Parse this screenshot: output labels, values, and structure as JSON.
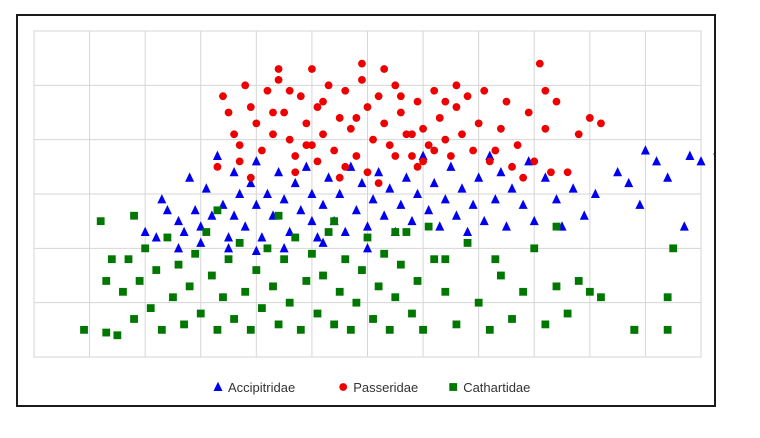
{
  "chart_data": {
    "type": "scatter",
    "title": "",
    "xlabel": "",
    "ylabel": "",
    "xlim": [
      0,
      12
    ],
    "ylim": [
      0,
      6
    ],
    "grid": true,
    "axis_tick_labels": false,
    "legend_position": "bottom",
    "series": [
      {
        "name": "Accipitridae",
        "marker": "triangle",
        "color": "#0000ee",
        "points": [
          [
            2.3,
            2.9
          ],
          [
            2.0,
            2.3
          ],
          [
            2.2,
            2.2
          ],
          [
            2.4,
            2.7
          ],
          [
            2.6,
            2.5
          ],
          [
            2.7,
            2.3
          ],
          [
            2.8,
            3.3
          ],
          [
            2.9,
            2.7
          ],
          [
            3.0,
            2.4
          ],
          [
            3.1,
            3.1
          ],
          [
            3.2,
            2.6
          ],
          [
            3.3,
            3.7
          ],
          [
            3.4,
            2.8
          ],
          [
            3.5,
            2.2
          ],
          [
            3.6,
            3.4
          ],
          [
            3.6,
            2.6
          ],
          [
            3.7,
            3.0
          ],
          [
            3.8,
            2.4
          ],
          [
            3.9,
            3.2
          ],
          [
            4.0,
            2.8
          ],
          [
            4.0,
            3.6
          ],
          [
            4.1,
            2.2
          ],
          [
            4.2,
            3.0
          ],
          [
            4.3,
            2.6
          ],
          [
            4.4,
            3.4
          ],
          [
            4.5,
            2.9
          ],
          [
            4.6,
            2.3
          ],
          [
            4.7,
            3.2
          ],
          [
            4.8,
            2.7
          ],
          [
            4.9,
            3.5
          ],
          [
            5.0,
            2.5
          ],
          [
            5.0,
            3.0
          ],
          [
            5.1,
            2.2
          ],
          [
            5.2,
            2.8
          ],
          [
            5.3,
            3.3
          ],
          [
            5.4,
            2.5
          ],
          [
            5.5,
            3.0
          ],
          [
            5.6,
            2.3
          ],
          [
            5.7,
            3.5
          ],
          [
            5.8,
            2.7
          ],
          [
            5.9,
            3.2
          ],
          [
            6.0,
            2.4
          ],
          [
            6.1,
            2.9
          ],
          [
            6.2,
            3.4
          ],
          [
            6.3,
            2.6
          ],
          [
            6.4,
            3.1
          ],
          [
            6.5,
            2.3
          ],
          [
            6.6,
            2.8
          ],
          [
            6.7,
            3.3
          ],
          [
            6.8,
            2.5
          ],
          [
            6.9,
            3.0
          ],
          [
            7.0,
            3.7
          ],
          [
            7.1,
            2.7
          ],
          [
            7.2,
            3.2
          ],
          [
            7.3,
            2.4
          ],
          [
            7.4,
            2.9
          ],
          [
            7.5,
            3.5
          ],
          [
            7.6,
            2.6
          ],
          [
            7.7,
            3.1
          ],
          [
            7.8,
            2.3
          ],
          [
            7.9,
            2.8
          ],
          [
            8.0,
            3.3
          ],
          [
            8.1,
            2.5
          ],
          [
            8.2,
            3.7
          ],
          [
            8.3,
            2.9
          ],
          [
            8.4,
            3.4
          ],
          [
            8.5,
            2.4
          ],
          [
            8.6,
            3.1
          ],
          [
            8.8,
            2.8
          ],
          [
            8.9,
            3.6
          ],
          [
            9.0,
            2.5
          ],
          [
            9.2,
            3.3
          ],
          [
            9.4,
            2.9
          ],
          [
            9.5,
            2.4
          ],
          [
            9.7,
            3.1
          ],
          [
            9.9,
            2.6
          ],
          [
            10.1,
            3.0
          ],
          [
            10.5,
            3.4
          ],
          [
            10.7,
            3.2
          ],
          [
            10.9,
            2.8
          ],
          [
            11.0,
            3.8
          ],
          [
            11.2,
            3.6
          ],
          [
            11.4,
            3.3
          ],
          [
            11.8,
            3.7
          ],
          [
            12.3,
            3.8
          ],
          [
            12.0,
            3.6
          ],
          [
            11.7,
            2.4
          ],
          [
            2.6,
            2.0
          ],
          [
            3.0,
            2.1
          ],
          [
            4.5,
            2.0
          ],
          [
            5.2,
            2.1
          ],
          [
            6.0,
            2.0
          ],
          [
            3.5,
            2.0
          ],
          [
            4.0,
            1.95
          ]
        ]
      },
      {
        "name": "Passeridae",
        "marker": "circle",
        "color": "#ee0000",
        "points": [
          [
            3.4,
            4.8
          ],
          [
            3.5,
            4.5
          ],
          [
            3.6,
            4.1
          ],
          [
            3.7,
            3.9
          ],
          [
            3.8,
            5.0
          ],
          [
            3.9,
            4.6
          ],
          [
            4.0,
            4.3
          ],
          [
            4.1,
            3.8
          ],
          [
            4.2,
            4.9
          ],
          [
            4.3,
            4.1
          ],
          [
            4.4,
            5.1
          ],
          [
            4.5,
            4.5
          ],
          [
            4.6,
            4.0
          ],
          [
            4.7,
            3.7
          ],
          [
            4.8,
            4.8
          ],
          [
            4.9,
            4.3
          ],
          [
            5.0,
            5.3
          ],
          [
            5.0,
            3.9
          ],
          [
            5.1,
            4.6
          ],
          [
            5.2,
            4.1
          ],
          [
            5.3,
            5.0
          ],
          [
            5.4,
            3.8
          ],
          [
            5.5,
            4.4
          ],
          [
            5.6,
            4.9
          ],
          [
            5.7,
            4.2
          ],
          [
            5.8,
            3.7
          ],
          [
            5.9,
            5.1
          ],
          [
            6.0,
            4.6
          ],
          [
            6.1,
            4.0
          ],
          [
            6.2,
            4.8
          ],
          [
            6.3,
            4.3
          ],
          [
            6.4,
            3.9
          ],
          [
            6.5,
            5.0
          ],
          [
            6.6,
            4.5
          ],
          [
            6.7,
            4.1
          ],
          [
            6.8,
            3.7
          ],
          [
            6.9,
            4.7
          ],
          [
            7.0,
            4.2
          ],
          [
            7.1,
            3.9
          ],
          [
            7.2,
            4.9
          ],
          [
            7.3,
            4.4
          ],
          [
            7.4,
            4.0
          ],
          [
            7.5,
            3.7
          ],
          [
            7.6,
            4.6
          ],
          [
            7.7,
            4.1
          ],
          [
            7.8,
            4.8
          ],
          [
            7.9,
            3.8
          ],
          [
            8.0,
            4.3
          ],
          [
            8.1,
            4.9
          ],
          [
            8.2,
            3.6
          ],
          [
            8.4,
            4.2
          ],
          [
            8.5,
            4.7
          ],
          [
            8.7,
            3.9
          ],
          [
            8.9,
            4.5
          ],
          [
            9.0,
            3.6
          ],
          [
            9.2,
            4.2
          ],
          [
            9.4,
            4.7
          ],
          [
            9.6,
            3.4
          ],
          [
            9.8,
            4.1
          ],
          [
            10.0,
            4.4
          ],
          [
            10.2,
            4.3
          ],
          [
            8.6,
            3.5
          ],
          [
            8.8,
            3.3
          ],
          [
            9.3,
            3.4
          ],
          [
            9.1,
            5.4
          ],
          [
            9.2,
            4.9
          ],
          [
            7.6,
            5.0
          ],
          [
            5.9,
            5.4
          ],
          [
            4.4,
            5.3
          ],
          [
            4.6,
            4.9
          ],
          [
            6.3,
            5.3
          ],
          [
            6.5,
            3.7
          ],
          [
            5.1,
            3.6
          ],
          [
            6.0,
            3.4
          ],
          [
            6.9,
            3.5
          ],
          [
            4.7,
            3.4
          ],
          [
            3.7,
            3.6
          ],
          [
            3.9,
            3.3
          ],
          [
            3.3,
            3.5
          ],
          [
            5.5,
            3.3
          ],
          [
            6.2,
            3.2
          ],
          [
            7.0,
            3.6
          ],
          [
            4.3,
            4.5
          ],
          [
            5.2,
            4.7
          ],
          [
            6.8,
            4.1
          ],
          [
            7.4,
            4.7
          ],
          [
            8.3,
            3.8
          ],
          [
            6.6,
            4.8
          ],
          [
            5.8,
            4.4
          ],
          [
            4.9,
            3.9
          ],
          [
            7.2,
            3.8
          ],
          [
            5.6,
            3.5
          ]
        ]
      },
      {
        "name": "Cathartidae",
        "marker": "square",
        "color": "#007700",
        "points": [
          [
            1.2,
            2.5
          ],
          [
            1.5,
            0.4
          ],
          [
            1.6,
            1.2
          ],
          [
            1.7,
            1.8
          ],
          [
            1.8,
            0.7
          ],
          [
            1.9,
            1.4
          ],
          [
            2.0,
            2.0
          ],
          [
            2.1,
            0.9
          ],
          [
            2.2,
            1.6
          ],
          [
            2.3,
            0.5
          ],
          [
            2.4,
            2.2
          ],
          [
            2.5,
            1.1
          ],
          [
            2.6,
            1.7
          ],
          [
            2.7,
            0.6
          ],
          [
            2.8,
            1.3
          ],
          [
            2.9,
            1.9
          ],
          [
            3.0,
            0.8
          ],
          [
            3.1,
            2.3
          ],
          [
            3.2,
            1.5
          ],
          [
            3.3,
            0.5
          ],
          [
            3.4,
            1.1
          ],
          [
            3.5,
            1.8
          ],
          [
            3.6,
            0.7
          ],
          [
            3.7,
            2.1
          ],
          [
            3.8,
            1.2
          ],
          [
            3.9,
            0.5
          ],
          [
            4.0,
            1.6
          ],
          [
            4.1,
            0.9
          ],
          [
            4.2,
            2.0
          ],
          [
            4.3,
            1.3
          ],
          [
            4.4,
            0.6
          ],
          [
            4.5,
            1.8
          ],
          [
            4.6,
            1.0
          ],
          [
            4.7,
            2.2
          ],
          [
            4.8,
            0.5
          ],
          [
            4.9,
            1.4
          ],
          [
            5.0,
            1.9
          ],
          [
            5.1,
            0.8
          ],
          [
            5.2,
            1.5
          ],
          [
            5.3,
            2.3
          ],
          [
            5.4,
            0.6
          ],
          [
            5.5,
            1.2
          ],
          [
            5.6,
            1.8
          ],
          [
            5.7,
            0.5
          ],
          [
            5.8,
            1.0
          ],
          [
            5.9,
            1.6
          ],
          [
            6.0,
            2.2
          ],
          [
            6.1,
            0.7
          ],
          [
            6.2,
            1.3
          ],
          [
            6.3,
            1.9
          ],
          [
            6.4,
            0.5
          ],
          [
            6.5,
            1.1
          ],
          [
            6.6,
            1.7
          ],
          [
            6.7,
            2.3
          ],
          [
            6.8,
            0.8
          ],
          [
            6.9,
            1.4
          ],
          [
            7.0,
            0.5
          ],
          [
            7.2,
            1.8
          ],
          [
            7.4,
            1.2
          ],
          [
            7.6,
            0.6
          ],
          [
            7.8,
            2.1
          ],
          [
            8.0,
            1.0
          ],
          [
            8.2,
            0.5
          ],
          [
            8.4,
            1.5
          ],
          [
            8.6,
            0.7
          ],
          [
            8.8,
            1.2
          ],
          [
            9.0,
            2.0
          ],
          [
            9.2,
            0.6
          ],
          [
            9.4,
            1.3
          ],
          [
            9.6,
            0.8
          ],
          [
            9.8,
            1.4
          ],
          [
            10.0,
            1.2
          ],
          [
            10.2,
            1.1
          ],
          [
            10.8,
            0.5
          ],
          [
            11.4,
            1.1
          ],
          [
            11.5,
            2.0
          ],
          [
            11.4,
            0.5
          ],
          [
            10.8,
            0.5
          ],
          [
            9.4,
            2.4
          ],
          [
            1.3,
            0.45
          ],
          [
            0.9,
            0.5
          ],
          [
            1.3,
            1.4
          ],
          [
            1.4,
            1.8
          ],
          [
            1.8,
            2.6
          ],
          [
            3.3,
            2.7
          ],
          [
            4.4,
            2.6
          ],
          [
            5.4,
            2.5
          ],
          [
            6.5,
            2.3
          ],
          [
            7.4,
            1.8
          ],
          [
            8.3,
            1.8
          ],
          [
            7.1,
            2.4
          ]
        ]
      }
    ]
  }
}
